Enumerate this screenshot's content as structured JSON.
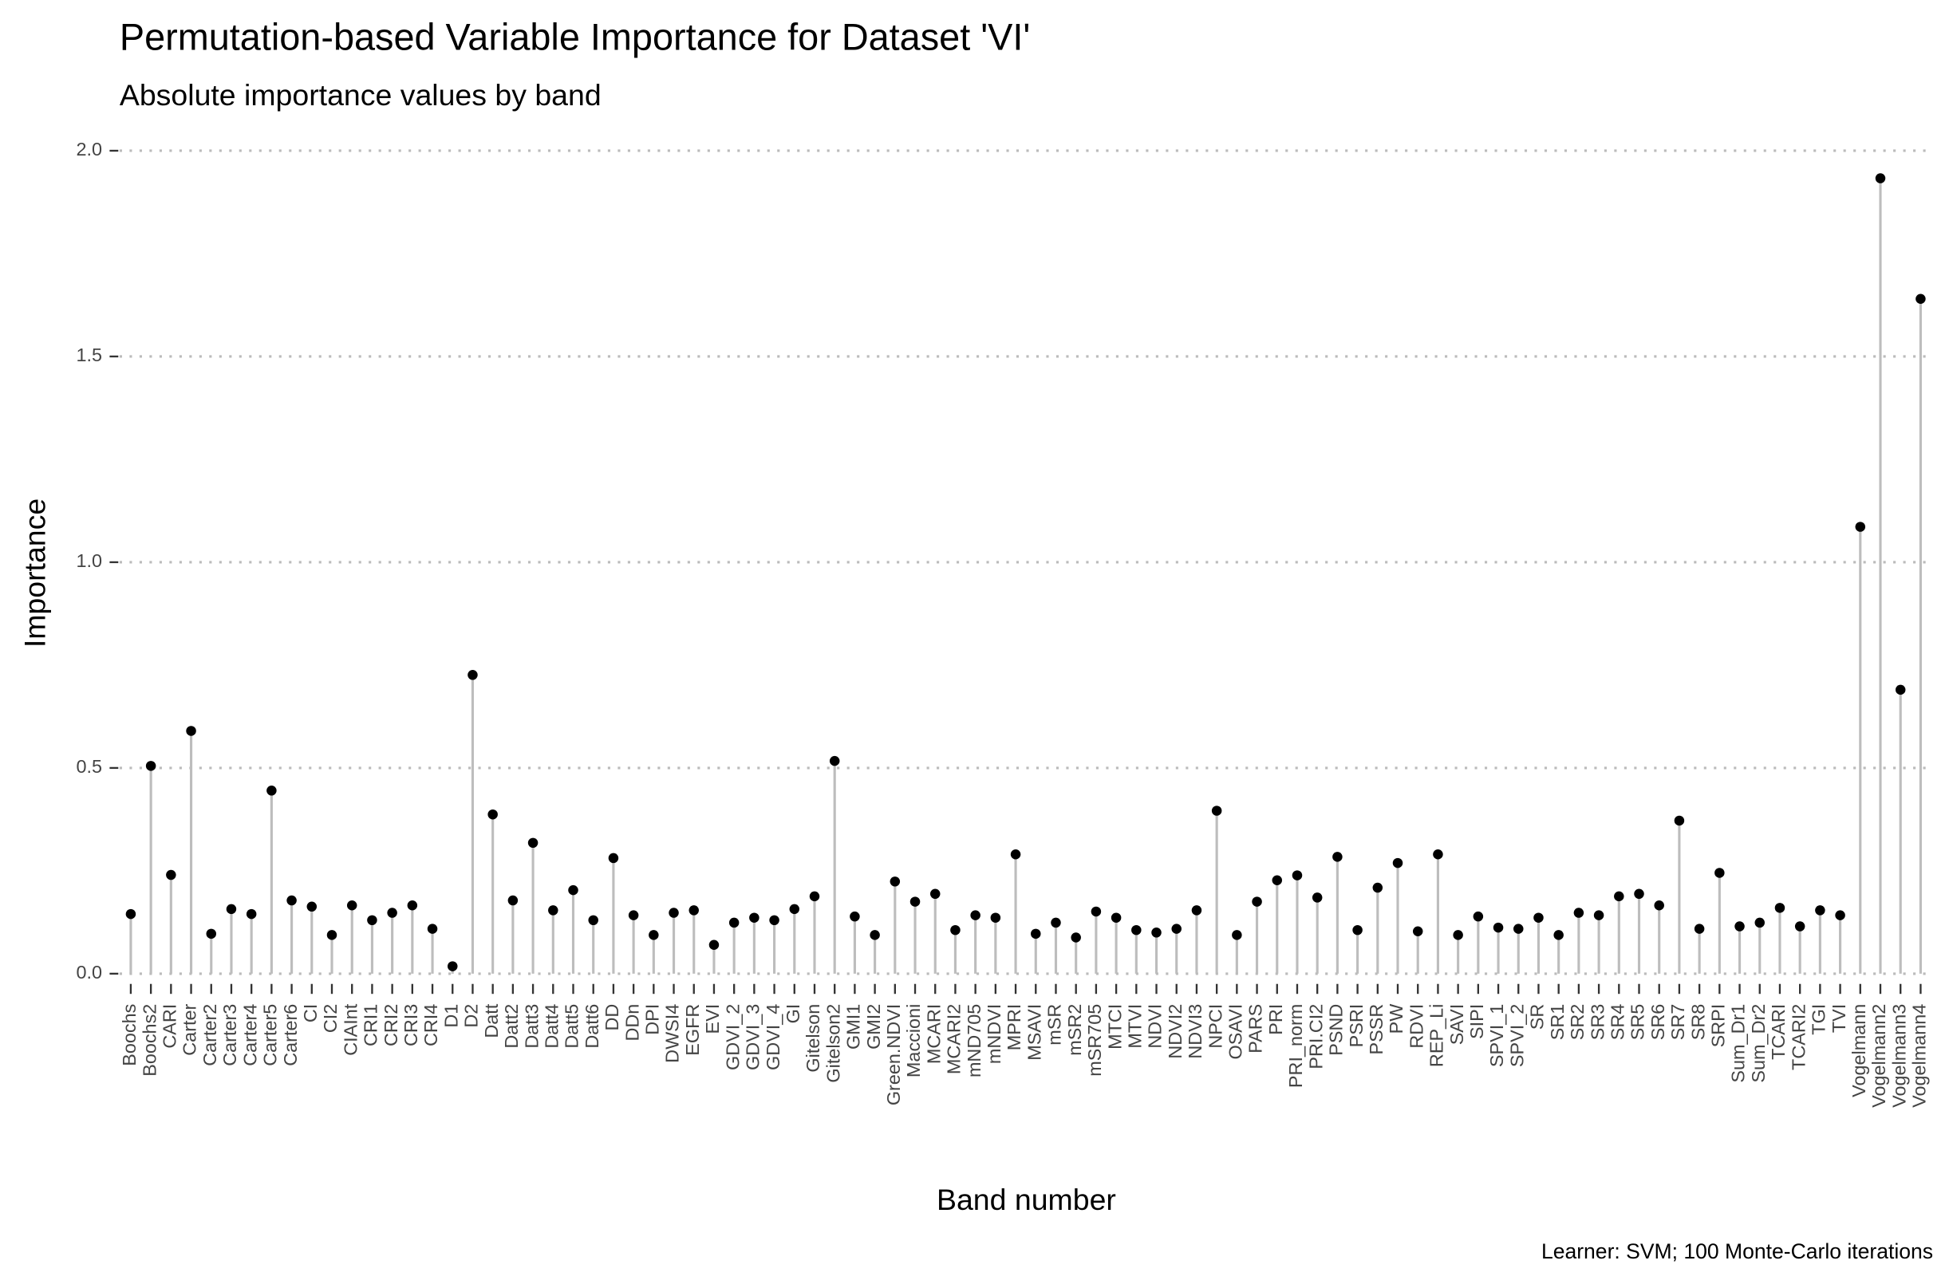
{
  "chart_data": {
    "type": "lollipop",
    "title": "Permutation-based Variable Importance for Dataset 'VI'",
    "subtitle": "Absolute importance values by band",
    "x_label": "Band number",
    "y_label": "Importance",
    "caption": "Learner: SVM; 100 Monte-Carlo iterations",
    "categories": [
      "Boochs",
      "Boochs2",
      "CARI",
      "Carter",
      "Carter2",
      "Carter3",
      "Carter4",
      "Carter5",
      "Carter6",
      "CI",
      "CI2",
      "CIAInt",
      "CRI1",
      "CRI2",
      "CRI3",
      "CRI4",
      "D1",
      "D2",
      "Datt",
      "Datt2",
      "Datt3",
      "Datt4",
      "Datt5",
      "Datt6",
      "DD",
      "DDn",
      "DPI",
      "DWSI4",
      "EGFR",
      "EVI",
      "GDVI_2",
      "GDVI_3",
      "GDVI_4",
      "GI",
      "Gitelson",
      "Gitelson2",
      "GMI1",
      "GMI2",
      "Green.NDVI",
      "Maccioni",
      "MCARI",
      "MCARI2",
      "mND705",
      "mNDVI",
      "MPRI",
      "MSAVI",
      "mSR",
      "mSR2",
      "mSR705",
      "MTCI",
      "MTVI",
      "NDVI",
      "NDVI2",
      "NDVI3",
      "NPCI",
      "OSAVI",
      "PARS",
      "PRI",
      "PRI_norm",
      "PRI.CI2",
      "PSND",
      "PSRI",
      "PSSR",
      "PW",
      "RDVI",
      "REP_Li",
      "SAVI",
      "SIPI",
      "SPVI_1",
      "SPVI_2",
      "SR",
      "SR1",
      "SR2",
      "SR3",
      "SR4",
      "SR5",
      "SR6",
      "SR7",
      "SR8",
      "SRPI",
      "Sum_Dr1",
      "Sum_Dr2",
      "TCARI",
      "TCARI2",
      "TGI",
      "TVI",
      "Vogelmann",
      "Vogelmann2",
      "Vogelmann3",
      "Vogelmann4"
    ],
    "values": [
      0.145,
      0.505,
      0.24,
      0.59,
      0.097,
      0.157,
      0.145,
      0.445,
      0.178,
      0.163,
      0.094,
      0.166,
      0.13,
      0.148,
      0.166,
      0.109,
      0.018,
      0.726,
      0.387,
      0.178,
      0.318,
      0.154,
      0.203,
      0.13,
      0.281,
      0.142,
      0.094,
      0.148,
      0.154,
      0.07,
      0.124,
      0.136,
      0.13,
      0.157,
      0.188,
      0.517,
      0.139,
      0.094,
      0.224,
      0.175,
      0.194,
      0.106,
      0.142,
      0.136,
      0.29,
      0.097,
      0.124,
      0.088,
      0.151,
      0.136,
      0.106,
      0.1,
      0.109,
      0.154,
      0.396,
      0.094,
      0.175,
      0.227,
      0.239,
      0.185,
      0.284,
      0.106,
      0.209,
      0.269,
      0.103,
      0.29,
      0.094,
      0.139,
      0.112,
      0.109,
      0.136,
      0.094,
      0.148,
      0.142,
      0.188,
      0.194,
      0.166,
      0.372,
      0.109,
      0.245,
      0.115,
      0.124,
      0.16,
      0.115,
      0.154,
      0.142,
      1.086,
      1.933,
      0.69,
      1.64
    ],
    "color": "#000000",
    "stem_color": "#bdbdbd",
    "ylim": [
      -0.04,
      2.06
    ],
    "yticks": [
      {
        "value": 0,
        "label": "0.0"
      },
      0.5,
      {
        "value": 1,
        "label": "1.0"
      },
      1.5,
      {
        "value": 2,
        "label": "2.0"
      }
    ],
    "grid": true
  }
}
